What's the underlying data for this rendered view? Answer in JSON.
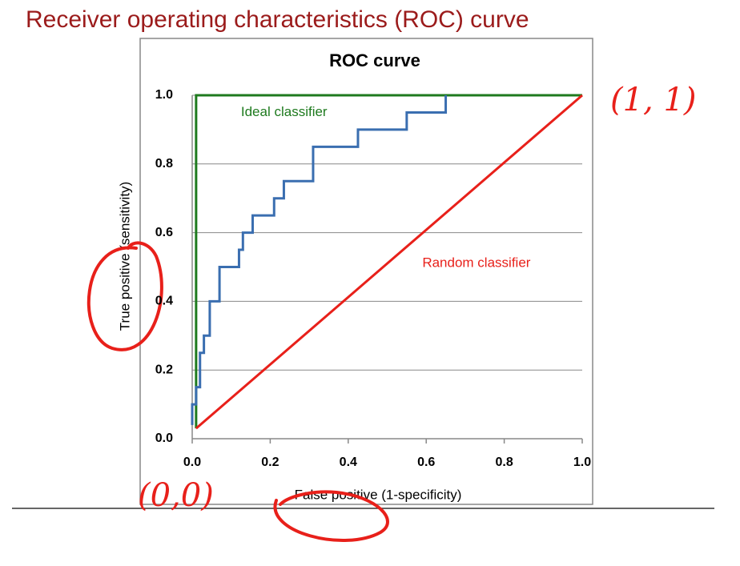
{
  "slide_title": "Receiver operating characteristics (ROC) curve",
  "annotations": [
    "(1, 1)",
    "(0,0)"
  ],
  "chart_data": {
    "type": "line",
    "title": "ROC curve",
    "x_label": "False positive (1-specificity)",
    "y_label": "True positive (sensitivity)",
    "xlim": [
      0,
      1
    ],
    "ylim": [
      0,
      1
    ],
    "xticks": [
      {
        "value": 0,
        "label": "0.0"
      },
      0.2,
      0.4,
      0.6,
      0.8,
      {
        "value": 1,
        "label": "1.0"
      }
    ],
    "yticks": [
      {
        "value": 0,
        "label": "0.0"
      },
      0.2,
      0.4,
      0.6,
      0.8,
      {
        "value": 1,
        "label": "1.0"
      }
    ],
    "grid": true,
    "series": [
      {
        "name": "Ideal classifier",
        "color": "#1e7a1e",
        "x": [
          0.01,
          0.01,
          1.0
        ],
        "values": [
          0.03,
          1.0,
          1.0
        ]
      },
      {
        "name": "Random classifier",
        "color": "#e8201a",
        "x": [
          0.01,
          1.0
        ],
        "values": [
          0.03,
          1.0
        ]
      },
      {
        "color": "#3a6eb0",
        "x": [
          0,
          0,
          0.01,
          0.01,
          0.02,
          0.02,
          0.03,
          0.03,
          0.045,
          0.045,
          0.07,
          0.07,
          0.12,
          0.12,
          0.13,
          0.13,
          0.155,
          0.155,
          0.21,
          0.21,
          0.235,
          0.235,
          0.31,
          0.31,
          0.425,
          0.425,
          0.55,
          0.55,
          0.65,
          0.65
        ],
        "values": [
          0.04,
          0.1,
          0.1,
          0.15,
          0.15,
          0.25,
          0.25,
          0.3,
          0.3,
          0.4,
          0.4,
          0.5,
          0.5,
          0.55,
          0.55,
          0.6,
          0.6,
          0.65,
          0.65,
          0.7,
          0.7,
          0.75,
          0.75,
          0.85,
          0.85,
          0.9,
          0.9,
          0.95,
          0.95,
          1.0
        ]
      }
    ]
  }
}
